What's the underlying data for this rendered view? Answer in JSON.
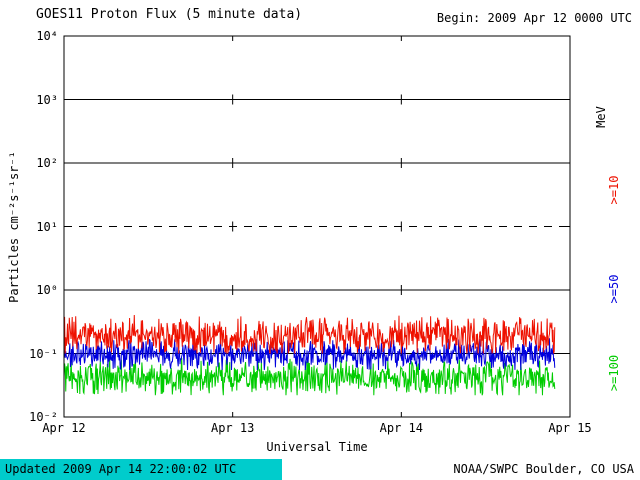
{
  "header": {
    "title": "GOES11 Proton Flux (5 minute data)",
    "begin_label": "Begin: 2009 Apr 12 0000 UTC"
  },
  "footer": {
    "updated": "Updated 2009 Apr 14 22:00:02 UTC",
    "source": "NOAA/SWPC Boulder, CO USA"
  },
  "colors": {
    "background": "#ffffff",
    "axis": "#000000",
    "footer_band": "#00cccc"
  },
  "chart_data": {
    "type": "line",
    "title": "GOES11 Proton Flux (5 minute data)",
    "begin_label": "Begin: 2009 Apr 12 0000 UTC",
    "xlabel": "Universal Time",
    "ylabel": "Particles cm⁻²s⁻¹sr⁻¹",
    "right_axis_label": "MeV",
    "x_ticks": [
      "Apr 12",
      "Apr 13",
      "Apr 14",
      "Apr 15"
    ],
    "x_span_days": 3,
    "y_tick_labels": [
      "10⁴",
      "10³",
      "10²",
      "10¹",
      "10⁰",
      "10⁻¹",
      "10⁻²"
    ],
    "y_tick_exponents": [
      4,
      3,
      2,
      1,
      0,
      -1,
      -2
    ],
    "ylim_log10": [
      -2,
      4
    ],
    "grid": {
      "solid_horizontal_exponents": [
        3,
        2,
        0,
        -1
      ],
      "dashed_horizontal_exponents": [
        1
      ],
      "vertical_dash_days": [
        1,
        2
      ]
    },
    "sampling_minutes": 5,
    "points_per_day": 288,
    "data_end_fraction": 0.972,
    "series": [
      {
        "name": ">=10",
        "color": "#ee1100",
        "approx_mean_flux": 0.19,
        "approx_min_flux": 0.1,
        "approx_max_flux": 0.45
      },
      {
        "name": ">=50",
        "color": "#0000dd",
        "approx_mean_flux": 0.095,
        "approx_min_flux": 0.055,
        "approx_max_flux": 0.19
      },
      {
        "name": ">=100",
        "color": "#00cc00",
        "approx_mean_flux": 0.042,
        "approx_min_flux": 0.022,
        "approx_max_flux": 0.095
      }
    ]
  }
}
